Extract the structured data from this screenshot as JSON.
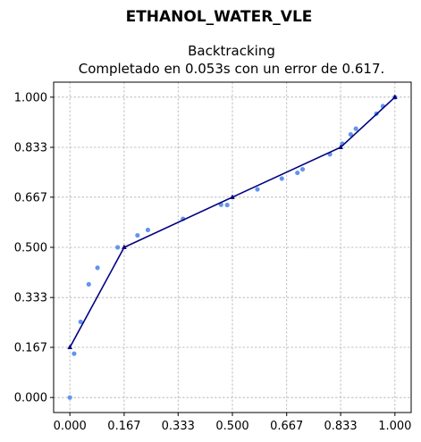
{
  "figure": {
    "suptitle": "ETHANOL_WATER_VLE"
  },
  "chart_data": {
    "type": "scatter",
    "title_line1": "Backtracking",
    "title_line2": "Completado en 0.053s con un error de 0.617.",
    "xlabel": "",
    "ylabel": "",
    "xlim": [
      -0.05,
      1.05
    ],
    "ylim": [
      -0.05,
      1.05
    ],
    "grid": true,
    "xticks": [
      0.0,
      0.167,
      0.333,
      0.5,
      0.667,
      0.833,
      1.0
    ],
    "xtick_labels": [
      "0.000",
      "0.167",
      "0.333",
      "0.500",
      "0.667",
      "0.833",
      "1.000"
    ],
    "yticks": [
      0.0,
      0.167,
      0.333,
      0.5,
      0.667,
      0.833,
      1.0
    ],
    "ytick_labels": [
      "0.000",
      "0.167",
      "0.333",
      "0.500",
      "0.667",
      "0.833",
      "1.000"
    ],
    "series": [
      {
        "name": "data",
        "kind": "scatter",
        "color": "#6495ed",
        "x": [
          0.0,
          0.013,
          0.033,
          0.058,
          0.085,
          0.147,
          0.208,
          0.24,
          0.348,
          0.465,
          0.484,
          0.577,
          0.652,
          0.7,
          0.716,
          0.8,
          0.838,
          0.864,
          0.88,
          0.943,
          0.963,
          1.0
        ],
        "y": [
          0.0,
          0.146,
          0.252,
          0.377,
          0.432,
          0.5,
          0.54,
          0.558,
          0.595,
          0.642,
          0.641,
          0.693,
          0.729,
          0.748,
          0.76,
          0.81,
          0.845,
          0.876,
          0.895,
          0.945,
          0.97,
          1.0
        ]
      },
      {
        "name": "fit",
        "kind": "line",
        "color": "#000080",
        "x": [
          0.0,
          0.167,
          0.5,
          0.833,
          1.0
        ],
        "y": [
          0.167,
          0.5,
          0.667,
          0.833,
          1.0
        ]
      }
    ]
  }
}
